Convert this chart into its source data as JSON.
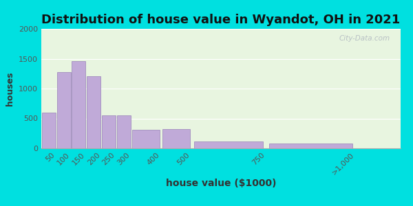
{
  "title": "Distribution of house value in Wyandot, OH in 2021",
  "xlabel": "house value ($1000)",
  "ylabel": "houses",
  "tick_labels": [
    "50",
    "100",
    "150",
    "200",
    "250",
    "300",
    "400",
    "500",
    "750",
    ">1,000"
  ],
  "tick_positions": [
    50,
    100,
    150,
    200,
    250,
    300,
    400,
    500,
    750,
    1050
  ],
  "bar_lefts": [
    0,
    50,
    100,
    150,
    200,
    250,
    300,
    400,
    500,
    750
  ],
  "bar_widths": [
    50,
    50,
    50,
    50,
    50,
    50,
    100,
    100,
    250,
    300
  ],
  "values": [
    600,
    1280,
    1460,
    1210,
    555,
    555,
    305,
    325,
    115,
    75
  ],
  "bar_color": "#c0aad8",
  "bar_edge_color": "#9880b8",
  "plot_bg_color": "#e8f5e0",
  "fig_bg_color": "#00e0e0",
  "title_fontsize": 13,
  "xlabel_fontsize": 10,
  "ylabel_fontsize": 9,
  "tick_fontsize": 8,
  "ylim": [
    0,
    2000
  ],
  "yticks": [
    0,
    500,
    1000,
    1500,
    2000
  ],
  "xlim": [
    0,
    1200
  ],
  "watermark_text": "City-Data.com"
}
